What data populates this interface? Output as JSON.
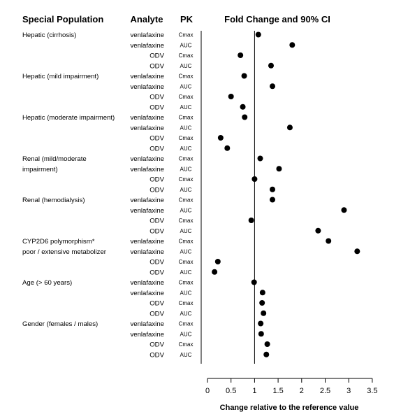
{
  "chart_data": {
    "type": "scatter",
    "title": "Fold Change and 90% CI",
    "headers": {
      "population": "Special Population",
      "analyte": "Analyte",
      "pk": "PK",
      "plot": "Fold Change and 90% CI"
    },
    "xlabel": "Change relative to the reference value",
    "xlim": [
      0,
      3.5
    ],
    "xticks": [
      "0",
      "0.5",
      "1",
      "1.5",
      "2",
      "2.5",
      "3",
      "3.5"
    ],
    "reference_line": 1,
    "grid": false,
    "rows": [
      {
        "population": "Hepatic (cirrhosis)",
        "analyte": "venlafaxine",
        "pk": "Cmax",
        "value": 1.08
      },
      {
        "population": "",
        "analyte": "venlafaxine",
        "pk": "AUC",
        "value": 1.8
      },
      {
        "population": "",
        "analyte": "ODV",
        "pk": "Cmax",
        "value": 0.7
      },
      {
        "population": "",
        "analyte": "ODV",
        "pk": "AUC",
        "value": 1.35
      },
      {
        "population": "Hepatic (mild impairment)",
        "analyte": "venlafaxine",
        "pk": "Cmax",
        "value": 0.78
      },
      {
        "population": "",
        "analyte": "venlafaxine",
        "pk": "AUC",
        "value": 1.38
      },
      {
        "population": "",
        "analyte": "ODV",
        "pk": "Cmax",
        "value": 0.5
      },
      {
        "population": "",
        "analyte": "ODV",
        "pk": "AUC",
        "value": 0.75
      },
      {
        "population": "Hepatic (moderate impairment)",
        "analyte": "venlafaxine",
        "pk": "Cmax",
        "value": 0.79
      },
      {
        "population": "",
        "analyte": "venlafaxine",
        "pk": "AUC",
        "value": 1.75
      },
      {
        "population": "",
        "analyte": "ODV",
        "pk": "Cmax",
        "value": 0.28
      },
      {
        "population": "",
        "analyte": "ODV",
        "pk": "AUC",
        "value": 0.42
      },
      {
        "population": "Renal (mild/moderate",
        "analyte": "venlafaxine",
        "pk": "Cmax",
        "value": 1.12
      },
      {
        "population": "impairment)",
        "analyte": "venlafaxine",
        "pk": "AUC",
        "value": 1.52
      },
      {
        "population": "",
        "analyte": "ODV",
        "pk": "Cmax",
        "value": 1.0
      },
      {
        "population": "",
        "analyte": "ODV",
        "pk": "AUC",
        "value": 1.38
      },
      {
        "population": "Renal (hemodialysis)",
        "analyte": "venlafaxine",
        "pk": "Cmax",
        "value": 1.38
      },
      {
        "population": "",
        "analyte": "venlafaxine",
        "pk": "AUC",
        "value": 2.9
      },
      {
        "population": "",
        "analyte": "ODV",
        "pk": "Cmax",
        "value": 0.93
      },
      {
        "population": "",
        "analyte": "ODV",
        "pk": "AUC",
        "value": 2.35
      },
      {
        "population": "CYP2D6 polymorphism*",
        "analyte": "venlafaxine",
        "pk": "Cmax",
        "value": 2.57
      },
      {
        "population": "poor / extensive metabolizer",
        "analyte": "venlafaxine",
        "pk": "AUC",
        "value": 3.18
      },
      {
        "population": "",
        "analyte": "ODV",
        "pk": "Cmax",
        "value": 0.22
      },
      {
        "population": "",
        "analyte": "ODV",
        "pk": "AUC",
        "value": 0.15
      },
      {
        "population": "Age (> 60 years)",
        "analyte": "venlafaxine",
        "pk": "Cmax",
        "value": 0.99
      },
      {
        "population": "",
        "analyte": "venlafaxine",
        "pk": "AUC",
        "value": 1.17
      },
      {
        "population": "",
        "analyte": "ODV",
        "pk": "Cmax",
        "value": 1.16
      },
      {
        "population": "",
        "analyte": "ODV",
        "pk": "AUC",
        "value": 1.19
      },
      {
        "population": "Gender (females / males)",
        "analyte": "venlafaxine",
        "pk": "Cmax",
        "value": 1.13
      },
      {
        "population": "",
        "analyte": "venlafaxine",
        "pk": "AUC",
        "value": 1.14
      },
      {
        "population": "",
        "analyte": "ODV",
        "pk": "Cmax",
        "value": 1.27
      },
      {
        "population": "",
        "analyte": "ODV",
        "pk": "AUC",
        "value": 1.25
      }
    ]
  }
}
